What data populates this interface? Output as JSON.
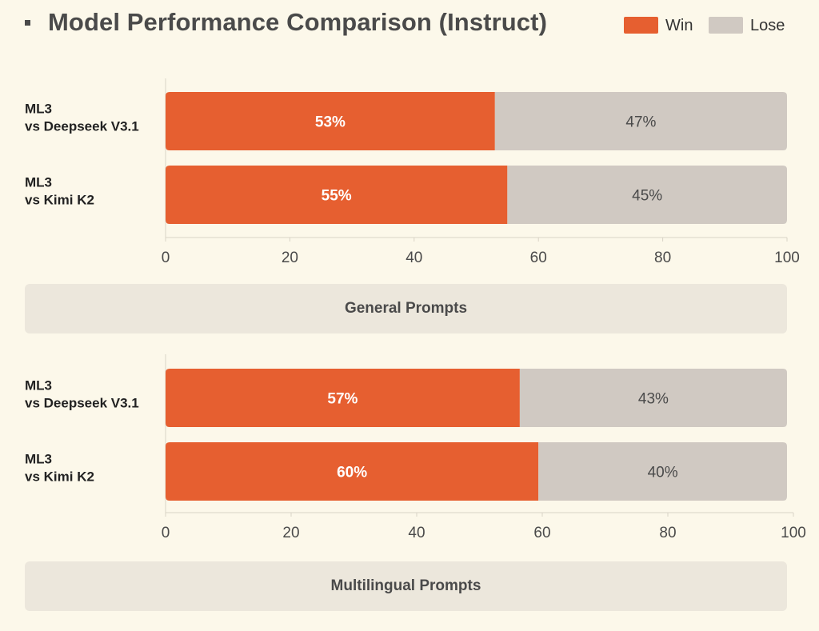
{
  "title": "Model Performance Comparison (Instruct)",
  "legend": [
    {
      "label": "Win",
      "color": "#e65f30"
    },
    {
      "label": "Lose",
      "color": "#d0c9c2"
    }
  ],
  "chart_data": [
    {
      "type": "bar",
      "orientation": "horizontal-stacked",
      "title": "General Prompts",
      "categories": [
        [
          "ML3",
          "vs Deepseek V3.1"
        ],
        [
          "ML3",
          "vs Kimi K2"
        ]
      ],
      "series": [
        {
          "name": "Win",
          "values": [
            53,
            55
          ],
          "labels": [
            "53%",
            "55%"
          ]
        },
        {
          "name": "Lose",
          "values": [
            47,
            45
          ],
          "labels": [
            "47%",
            "45%"
          ]
        }
      ],
      "xlim": [
        0,
        100
      ],
      "xticks": [
        0,
        20,
        40,
        60,
        80,
        100
      ]
    },
    {
      "type": "bar",
      "orientation": "horizontal-stacked",
      "title": "Multilingual Prompts",
      "categories": [
        [
          "ML3",
          "vs Deepseek V3.1"
        ],
        [
          "ML3",
          "vs Kimi K2"
        ]
      ],
      "series": [
        {
          "name": "Win",
          "values": [
            57,
            60
          ],
          "labels": [
            "57%",
            "60%"
          ]
        },
        {
          "name": "Lose",
          "values": [
            43,
            40
          ],
          "labels": [
            "43%",
            "40%"
          ]
        }
      ],
      "xlim": [
        0,
        100
      ],
      "xticks": [
        0,
        20,
        40,
        60,
        80,
        100
      ]
    }
  ]
}
